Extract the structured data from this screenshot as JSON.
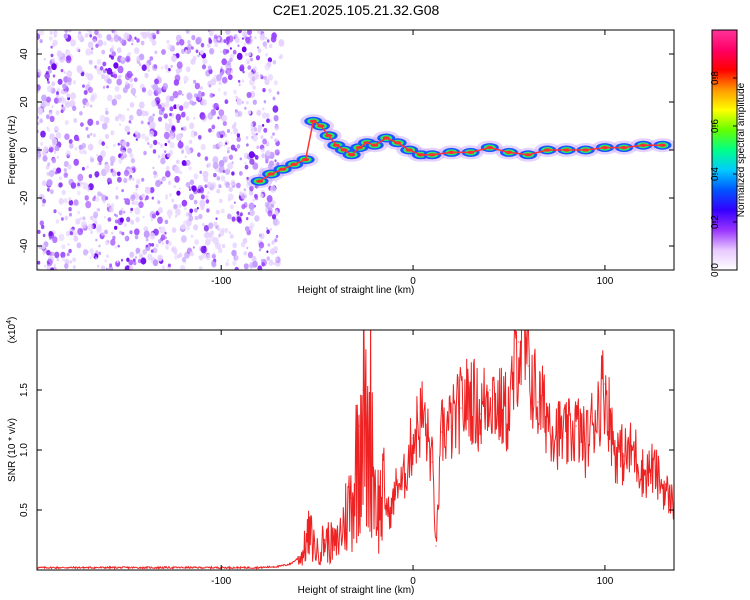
{
  "title": "C2E1.2025.105.21.32.G08",
  "chart_data": [
    {
      "type": "heatmap",
      "xlabel": "Height of straight line (km)",
      "ylabel": "Frequency (Hz)",
      "xlim": [
        -196,
        136
      ],
      "ylim": [
        -50,
        50
      ],
      "xticks": [
        -100,
        0,
        100
      ],
      "yticks": [
        -40,
        -20,
        0,
        20,
        40
      ],
      "xtick_labels": [
        "-100",
        "0",
        "100"
      ],
      "ytick_labels": [
        "-40",
        "-20",
        "0",
        "20",
        "40"
      ],
      "colorbar": {
        "label": "Normalized spectral amplitude",
        "ticks": [
          0.0,
          0.2,
          0.4,
          0.6,
          0.8
        ],
        "tick_labels": [
          "0.0",
          "0.2",
          "0.4",
          "0.6",
          "0.8"
        ],
        "range": [
          0,
          1
        ],
        "colormap": [
          "#ffffff",
          "#e8c8ff",
          "#9933ff",
          "#3300ff",
          "#0055ff",
          "#00ccff",
          "#00ff88",
          "#66ff00",
          "#ffff00",
          "#ff9900",
          "#ff0000",
          "#ff0066",
          "#ff3399"
        ]
      },
      "noise_region_x": [
        -196,
        -70
      ],
      "ridge_trace": [
        {
          "x": -80,
          "y": -13
        },
        {
          "x": -74,
          "y": -10
        },
        {
          "x": -68,
          "y": -8
        },
        {
          "x": -62,
          "y": -6
        },
        {
          "x": -56,
          "y": -4
        },
        {
          "x": -52,
          "y": 12
        },
        {
          "x": -48,
          "y": 10
        },
        {
          "x": -44,
          "y": 6
        },
        {
          "x": -40,
          "y": 2
        },
        {
          "x": -36,
          "y": 0
        },
        {
          "x": -32,
          "y": -2
        },
        {
          "x": -28,
          "y": 1
        },
        {
          "x": -24,
          "y": 3
        },
        {
          "x": -20,
          "y": 2
        },
        {
          "x": -14,
          "y": 5
        },
        {
          "x": -8,
          "y": 3
        },
        {
          "x": -2,
          "y": 0
        },
        {
          "x": 4,
          "y": -2
        },
        {
          "x": 10,
          "y": -2
        },
        {
          "x": 20,
          "y": -1
        },
        {
          "x": 30,
          "y": -1
        },
        {
          "x": 40,
          "y": 1
        },
        {
          "x": 50,
          "y": -1
        },
        {
          "x": 60,
          "y": -2
        },
        {
          "x": 70,
          "y": 0
        },
        {
          "x": 80,
          "y": 0
        },
        {
          "x": 90,
          "y": 0
        },
        {
          "x": 100,
          "y": 1
        },
        {
          "x": 110,
          "y": 1
        },
        {
          "x": 120,
          "y": 2
        },
        {
          "x": 130,
          "y": 2
        }
      ]
    },
    {
      "type": "line",
      "xlabel": "Height of straight line (km)",
      "ylabel": "SNR (10 * v/v)",
      "y_multiplier_label": "(x10",
      "y_multiplier_exp": "4",
      "xlim": [
        -196,
        136
      ],
      "ylim": [
        0,
        2.0
      ],
      "xticks": [
        -100,
        0,
        100
      ],
      "yticks": [
        0.5,
        1.0,
        1.5
      ],
      "xtick_labels": [
        "-100",
        "0",
        "100"
      ],
      "ytick_labels": [
        "0.5",
        "1.0",
        "1.5"
      ],
      "line_color": "#ee2222",
      "series": [
        {
          "x": [
            -196,
            -180,
            -160,
            -140,
            -120,
            -100,
            -80,
            -70,
            -64,
            -58,
            -54,
            -50,
            -46,
            -40,
            -36,
            -32,
            -30,
            -28,
            -26,
            -24,
            -22,
            -20,
            -18,
            -16,
            -14,
            -12,
            -10,
            -8,
            -6,
            -4,
            -2,
            0,
            5,
            10,
            12,
            15,
            20,
            25,
            30,
            35,
            40,
            45,
            50,
            55,
            60,
            65,
            70,
            75,
            80,
            85,
            90,
            95,
            100,
            105,
            110,
            115,
            120,
            125,
            130,
            136
          ],
          "values": [
            0.02,
            0.02,
            0.02,
            0.02,
            0.02,
            0.02,
            0.02,
            0.03,
            0.05,
            0.12,
            0.3,
            0.15,
            0.25,
            0.2,
            0.4,
            0.6,
            0.8,
            1.2,
            1.5,
            0.9,
            1.35,
            0.7,
            0.5,
            0.6,
            0.55,
            0.45,
            0.6,
            0.75,
            0.7,
            0.8,
            0.95,
            1.1,
            1.3,
            0.9,
            0.2,
            1.15,
            1.2,
            1.35,
            1.45,
            1.3,
            1.5,
            1.35,
            1.3,
            1.9,
            1.7,
            1.4,
            1.3,
            1.15,
            1.1,
            1.2,
            1.05,
            1.3,
            1.55,
            1.0,
            0.95,
            1.0,
            0.8,
            0.85,
            0.7,
            0.55
          ]
        }
      ]
    }
  ]
}
